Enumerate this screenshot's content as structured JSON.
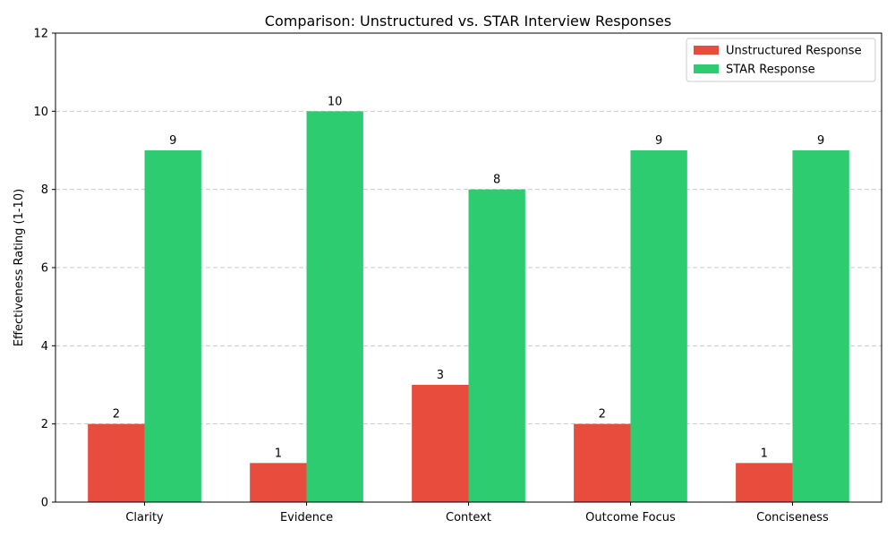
{
  "chart_data": {
    "type": "bar",
    "title": "Comparison: Unstructured vs. STAR Interview Responses",
    "xlabel": "",
    "ylabel": "Effectiveness Rating (1-10)",
    "ylim": [
      0,
      12
    ],
    "yticks": [
      0,
      2,
      4,
      6,
      8,
      10,
      12
    ],
    "grid": "y-dashed",
    "legend_position": "top-right",
    "categories": [
      "Clarity",
      "Evidence",
      "Context",
      "Outcome Focus",
      "Conciseness"
    ],
    "series": [
      {
        "name": "Unstructured Response",
        "color": "#e74c3c",
        "values": [
          2,
          1,
          3,
          2,
          1
        ]
      },
      {
        "name": "STAR Response",
        "color": "#2ecc71",
        "values": [
          9,
          10,
          8,
          9,
          9
        ]
      }
    ]
  }
}
